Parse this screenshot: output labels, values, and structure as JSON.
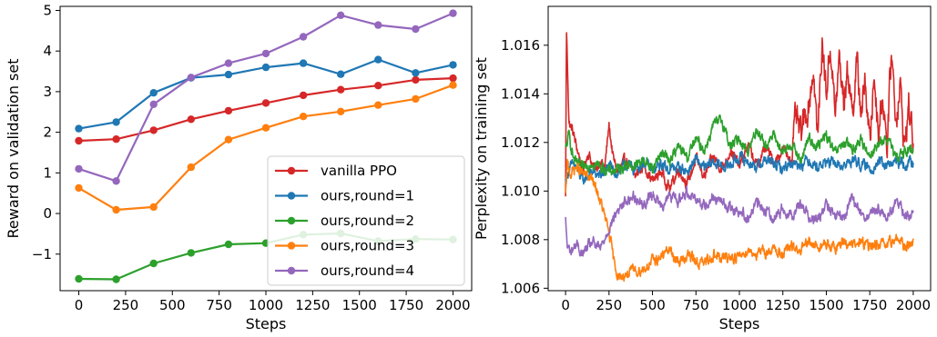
{
  "chart_data": [
    {
      "type": "line",
      "xlabel": "Steps",
      "ylabel": "Reward on validation set",
      "xlim": [
        -100,
        2100
      ],
      "ylim": [
        -1.9,
        5.1
      ],
      "xticks": [
        0,
        250,
        500,
        750,
        1000,
        1250,
        1500,
        1750,
        2000
      ],
      "xtick_labels": [
        "0",
        "250",
        "500",
        "750",
        "1000",
        "1250",
        "1500",
        "1750",
        "2000"
      ],
      "yticks": [
        -1,
        0,
        1,
        2,
        3,
        4,
        5
      ],
      "ytick_labels": [
        "−1",
        "0",
        "1",
        "2",
        "3",
        "4",
        "5"
      ],
      "grid": false,
      "legend_position": "lower-right",
      "markers": true,
      "x": [
        0,
        200,
        400,
        600,
        800,
        1000,
        1200,
        1400,
        1600,
        1800,
        2000
      ],
      "series": [
        {
          "name": "vanilla PPO",
          "color": "#d62728",
          "values": [
            1.79,
            1.83,
            2.05,
            2.32,
            2.53,
            2.72,
            2.91,
            3.05,
            3.15,
            3.29,
            3.33
          ]
        },
        {
          "name": "ours,round=1",
          "color": "#1f77b4",
          "values": [
            2.09,
            2.25,
            2.97,
            3.34,
            3.42,
            3.6,
            3.7,
            3.43,
            3.79,
            3.46,
            3.66
          ]
        },
        {
          "name": "ours,round=2",
          "color": "#2ca02c",
          "values": [
            -1.61,
            -1.62,
            -1.23,
            -0.97,
            -0.76,
            -0.73,
            -0.52,
            -0.49,
            -0.68,
            -0.63,
            -0.64
          ]
        },
        {
          "name": "ours,round=3",
          "color": "#ff7f0e",
          "values": [
            0.63,
            0.09,
            0.16,
            1.14,
            1.82,
            2.11,
            2.39,
            2.51,
            2.67,
            2.82,
            3.16
          ]
        },
        {
          "name": "ours,round=4",
          "color": "#9467bd",
          "values": [
            1.1,
            0.8,
            2.69,
            3.35,
            3.7,
            3.94,
            4.35,
            4.88,
            4.64,
            4.54,
            4.93
          ]
        }
      ]
    },
    {
      "type": "line",
      "xlabel": "Steps",
      "ylabel": "Perplexity on training set",
      "xlim": [
        -100,
        2100
      ],
      "ylim": [
        1.0059,
        1.0176
      ],
      "xticks": [
        0,
        250,
        500,
        750,
        1000,
        1250,
        1500,
        1750,
        2000
      ],
      "xtick_labels": [
        "0",
        "250",
        "500",
        "750",
        "1000",
        "1250",
        "1500",
        "1750",
        "2000"
      ],
      "yticks": [
        1.006,
        1.008,
        1.01,
        1.012,
        1.014,
        1.016
      ],
      "ytick_labels": [
        "1.006",
        "1.008",
        "1.010",
        "1.012",
        "1.014",
        "1.016"
      ],
      "grid": false,
      "legend": false,
      "series": [
        {
          "name": "",
          "color": "#d62728",
          "x": [
            0,
            5,
            20,
            40,
            60,
            80,
            100,
            130,
            150,
            175,
            200,
            225,
            250,
            275,
            300,
            350,
            400,
            450,
            500,
            550,
            600,
            650,
            700,
            750,
            800,
            850,
            900,
            950,
            1000,
            1050,
            1100,
            1150,
            1200,
            1250,
            1300,
            1325,
            1350,
            1400,
            1425,
            1450,
            1475,
            1500,
            1525,
            1550,
            1575,
            1600,
            1625,
            1650,
            1675,
            1700,
            1725,
            1750,
            1775,
            1800,
            1825,
            1850,
            1875,
            1900,
            1925,
            1950,
            1975,
            2000
          ],
          "values": [
            1.0097,
            1.0168,
            1.0128,
            1.0125,
            1.0119,
            1.0114,
            1.0108,
            1.0116,
            1.0112,
            1.0108,
            1.0113,
            1.0109,
            1.0127,
            1.0113,
            1.0108,
            1.0113,
            1.0106,
            1.0111,
            1.0104,
            1.0108,
            1.0101,
            1.0109,
            1.0103,
            1.0113,
            1.0106,
            1.0114,
            1.0109,
            1.0117,
            1.011,
            1.0119,
            1.011,
            1.0118,
            1.0112,
            1.0117,
            1.0113,
            1.0131,
            1.0123,
            1.0136,
            1.015,
            1.0122,
            1.0161,
            1.0141,
            1.016,
            1.0131,
            1.0154,
            1.0137,
            1.015,
            1.0133,
            1.0152,
            1.0133,
            1.0145,
            1.0119,
            1.0148,
            1.0125,
            1.014,
            1.0119,
            1.0158,
            1.013,
            1.0143,
            1.0118,
            1.0135,
            1.0121
          ]
        },
        {
          "name": "",
          "color": "#1f77b4",
          "x": [
            0,
            20,
            50,
            100,
            150,
            200,
            250,
            300,
            350,
            400,
            450,
            500,
            550,
            600,
            650,
            700,
            750,
            800,
            850,
            900,
            950,
            1000,
            1050,
            1100,
            1150,
            1200,
            1250,
            1300,
            1350,
            1400,
            1450,
            1500,
            1550,
            1600,
            1650,
            1700,
            1750,
            1800,
            1850,
            1900,
            1950,
            2000
          ],
          "values": [
            1.0104,
            1.0109,
            1.0111,
            1.0104,
            1.0108,
            1.0106,
            1.011,
            1.0107,
            1.0111,
            1.0109,
            1.0112,
            1.0108,
            1.0111,
            1.0109,
            1.011,
            1.0108,
            1.0113,
            1.0109,
            1.0112,
            1.011,
            1.0111,
            1.0114,
            1.0112,
            1.011,
            1.0113,
            1.0111,
            1.0109,
            1.0112,
            1.0111,
            1.0113,
            1.011,
            1.0112,
            1.0111,
            1.011,
            1.0113,
            1.0111,
            1.0109,
            1.0112,
            1.011,
            1.0112,
            1.0111,
            1.0112
          ]
        },
        {
          "name": "",
          "color": "#2ca02c",
          "x": [
            0,
            20,
            50,
            100,
            150,
            200,
            250,
            300,
            350,
            400,
            450,
            500,
            550,
            600,
            650,
            700,
            750,
            800,
            850,
            900,
            950,
            1000,
            1050,
            1100,
            1150,
            1200,
            1250,
            1300,
            1350,
            1400,
            1450,
            1500,
            1550,
            1600,
            1650,
            1700,
            1750,
            1800,
            1850,
            1900,
            1950,
            2000
          ],
          "values": [
            1.0117,
            1.0123,
            1.0112,
            1.0109,
            1.0112,
            1.011,
            1.0108,
            1.0109,
            1.0111,
            1.011,
            1.0113,
            1.0109,
            1.0116,
            1.0113,
            1.0118,
            1.0114,
            1.0121,
            1.0117,
            1.0127,
            1.0129,
            1.0118,
            1.0122,
            1.0116,
            1.0126,
            1.0119,
            1.0123,
            1.0115,
            1.012,
            1.0112,
            1.0122,
            1.0118,
            1.0123,
            1.0115,
            1.012,
            1.0117,
            1.0121,
            1.0115,
            1.0119,
            1.0122,
            1.0113,
            1.0117,
            1.0116
          ]
        },
        {
          "name": "",
          "color": "#ff7f0e",
          "x": [
            0,
            10,
            30,
            60,
            100,
            150,
            200,
            250,
            280,
            310,
            350,
            400,
            450,
            500,
            550,
            600,
            650,
            700,
            750,
            800,
            850,
            900,
            950,
            1000,
            1050,
            1100,
            1150,
            1200,
            1250,
            1300,
            1350,
            1400,
            1450,
            1500,
            1550,
            1600,
            1650,
            1700,
            1750,
            1800,
            1850,
            1900,
            1950,
            2000
          ],
          "values": [
            1.0098,
            1.0111,
            1.0107,
            1.011,
            1.0107,
            1.0105,
            1.0096,
            1.0083,
            1.007,
            1.0064,
            1.0066,
            1.0067,
            1.0068,
            1.0071,
            1.0073,
            1.0076,
            1.007,
            1.0074,
            1.0071,
            1.007,
            1.0074,
            1.0072,
            1.0073,
            1.0073,
            1.0076,
            1.0074,
            1.0075,
            1.0076,
            1.0074,
            1.0077,
            1.0075,
            1.0079,
            1.0077,
            1.0078,
            1.0076,
            1.008,
            1.0077,
            1.0079,
            1.0077,
            1.0078,
            1.0077,
            1.0081,
            1.0077,
            1.0079
          ]
        },
        {
          "name": "",
          "color": "#9467bd",
          "x": [
            0,
            10,
            30,
            60,
            100,
            150,
            200,
            250,
            300,
            350,
            400,
            450,
            500,
            550,
            600,
            650,
            700,
            750,
            800,
            850,
            900,
            950,
            1000,
            1050,
            1100,
            1150,
            1200,
            1250,
            1300,
            1350,
            1400,
            1450,
            1500,
            1550,
            1600,
            1650,
            1700,
            1750,
            1800,
            1850,
            1900,
            1950,
            2000
          ],
          "values": [
            1.0088,
            1.0077,
            1.0075,
            1.0078,
            1.0074,
            1.0079,
            1.0076,
            1.0085,
            1.0092,
            1.0096,
            1.0098,
            1.0094,
            1.0099,
            1.0094,
            1.0098,
            1.0096,
            1.01,
            1.0097,
            1.0094,
            1.0098,
            1.0095,
            1.0093,
            1.0092,
            1.0089,
            1.0095,
            1.0092,
            1.0089,
            1.0093,
            1.009,
            1.0095,
            1.009,
            1.0088,
            1.0094,
            1.009,
            1.0089,
            1.0097,
            1.0091,
            1.0089,
            1.0093,
            1.0089,
            1.0096,
            1.0091,
            1.009
          ]
        }
      ]
    }
  ]
}
